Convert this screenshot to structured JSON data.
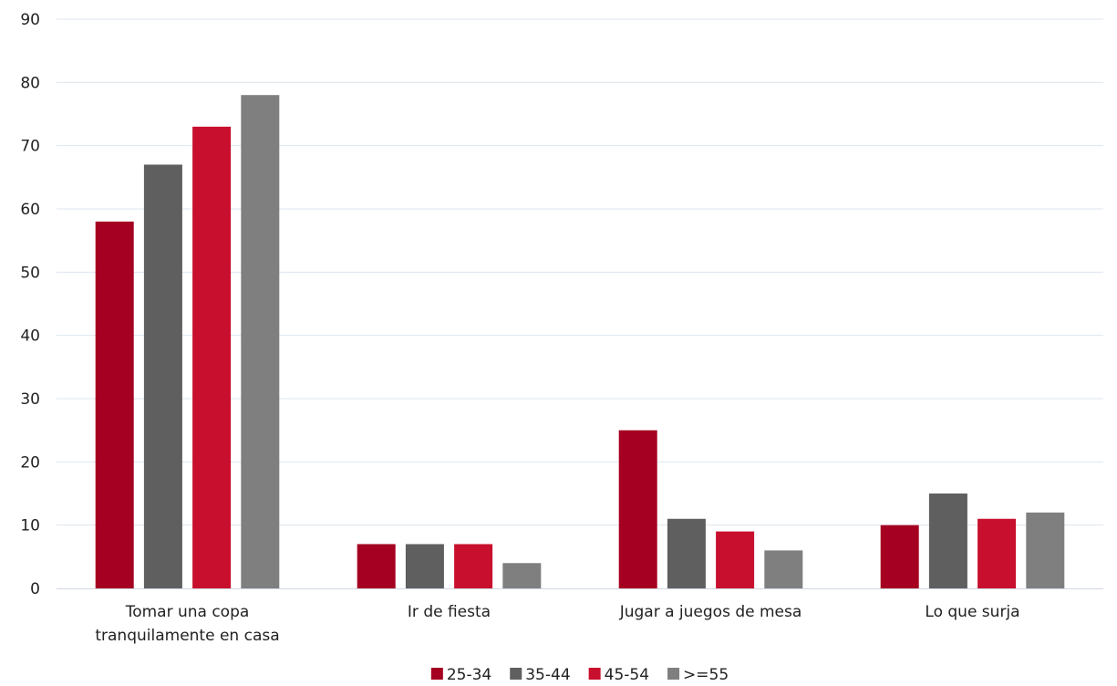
{
  "chart_data": {
    "type": "bar",
    "categories": [
      [
        "Tomar una copa",
        "tranquilamente en casa"
      ],
      [
        "Ir de fiesta"
      ],
      [
        "Jugar a juegos de mesa"
      ],
      [
        "Lo que surja"
      ]
    ],
    "series": [
      {
        "name": "25-34",
        "color": "#a50021",
        "values": [
          58,
          7,
          25,
          10
        ]
      },
      {
        "name": "35-44",
        "color": "#5f5f5f",
        "values": [
          67,
          7,
          11,
          15
        ]
      },
      {
        "name": "45-54",
        "color": "#c8102e",
        "values": [
          73,
          7,
          9,
          11
        ]
      },
      {
        "name": ">=55",
        "color": "#7f7f7f",
        "values": [
          78,
          4,
          6,
          12
        ]
      }
    ],
    "ylim": [
      0,
      90
    ],
    "yticks": [
      0,
      10,
      20,
      30,
      40,
      50,
      60,
      70,
      80,
      90
    ],
    "grid": true,
    "gridColor": "#dde6ee",
    "legend": "bottom-center"
  }
}
